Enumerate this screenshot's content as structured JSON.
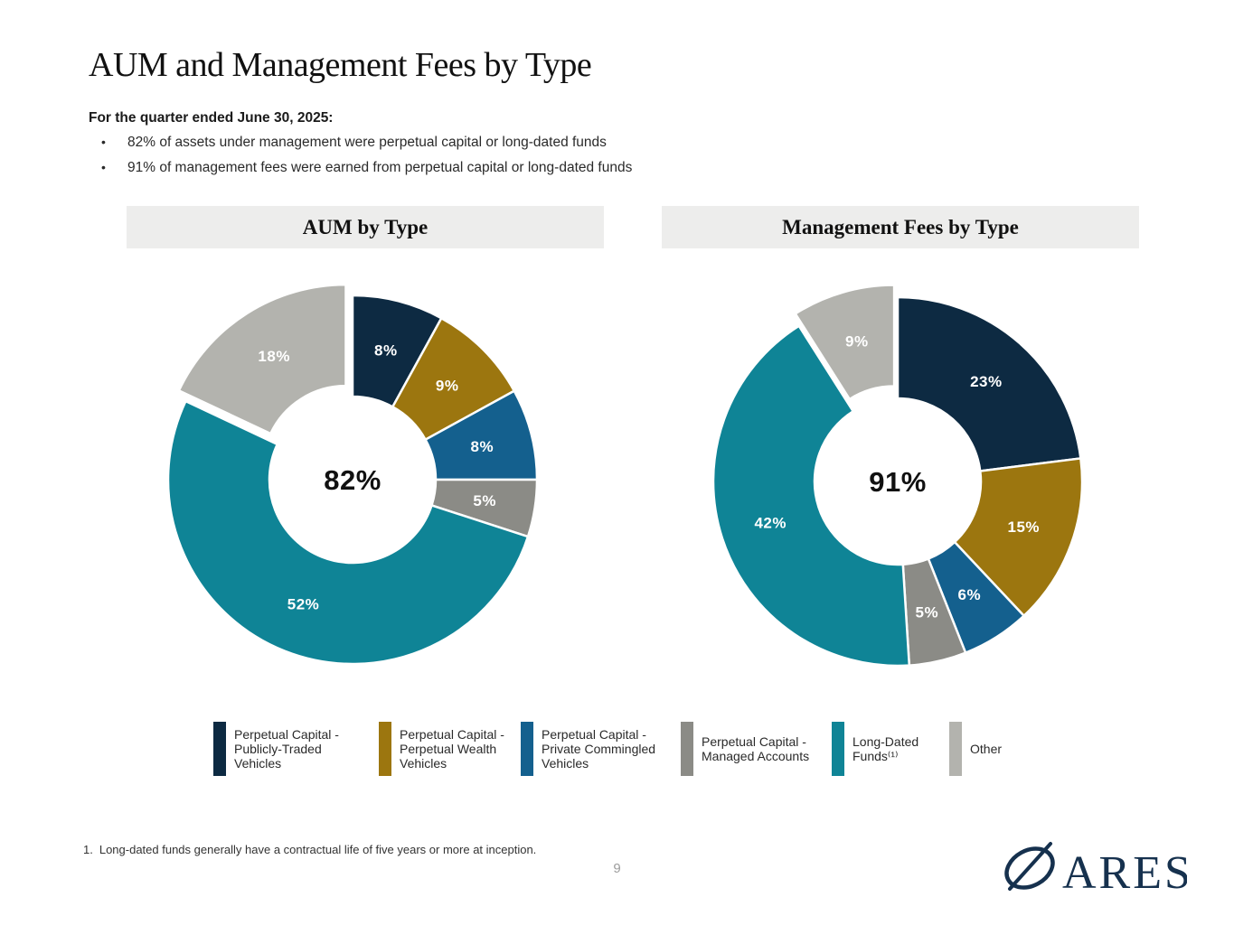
{
  "page": {
    "title": "AUM and Management Fees by Type",
    "intro_heading": "For the quarter ended June 30, 2025:",
    "bullet_glyph": "•",
    "bullets": [
      "82% of assets under management were perpetual capital or long-dated funds",
      "91% of management fees were earned from perpetual capital or long-dated funds"
    ],
    "footnote": {
      "marker": "1.",
      "text": "Long-dated funds generally have a contractual life of five years or more at inception."
    },
    "page_number": "9"
  },
  "brand": {
    "logo_text": "ARES",
    "logo_color": "#16314e"
  },
  "colors": {
    "navy": "#0d2a42",
    "gold": "#9c760f",
    "blue": "#14608e",
    "gray": "#8b8b86",
    "teal": "#0f8496",
    "light_gray": "#b3b3ae",
    "band_background": "#ededec"
  },
  "legend": {
    "items": [
      {
        "label": "Perpetual Capital - Publicly-Traded Vehicles",
        "color": "#0d2a42",
        "text_width": 148
      },
      {
        "label": "Perpetual Capital - Perpetual Wealth Vehicles",
        "color": "#9c760f",
        "text_width": 122
      },
      {
        "label": "Perpetual Capital - Private Commingled Vehicles",
        "color": "#14608e",
        "text_width": 142
      },
      {
        "label": "Perpetual Capital - Managed Accounts",
        "color": "#8b8b86",
        "text_width": 132
      },
      {
        "label": "Long-Dated Funds⁽¹⁾",
        "color": "#0f8496",
        "text_width": 95
      },
      {
        "label": "Other",
        "color": "#b3b3ae",
        "text_width": 50
      }
    ]
  },
  "chart_data": [
    {
      "type": "pie",
      "subtype": "donut",
      "title": "AUM by Type",
      "categories": [
        "Perpetual Capital - Publicly-Traded Vehicles",
        "Perpetual Capital - Perpetual Wealth Vehicles",
        "Perpetual Capital - Private Commingled Vehicles",
        "Perpetual Capital - Managed Accounts",
        "Long-Dated Funds",
        "Other"
      ],
      "values": [
        8,
        9,
        8,
        5,
        52,
        18
      ],
      "labels": [
        "8%",
        "9%",
        "8%",
        "5%",
        "52%",
        "18%"
      ],
      "colors": [
        "#0d2a42",
        "#9c760f",
        "#14608e",
        "#8b8b86",
        "#0f8496",
        "#b3b3ae"
      ],
      "center_label": "82%",
      "exploded_index": 5,
      "units": "%",
      "start_angle_deg": 0,
      "direction": "clockwise"
    },
    {
      "type": "pie",
      "subtype": "donut",
      "title": "Management Fees by Type",
      "categories": [
        "Perpetual Capital - Publicly-Traded Vehicles",
        "Perpetual Capital - Perpetual Wealth Vehicles",
        "Perpetual Capital - Private Commingled Vehicles",
        "Perpetual Capital - Managed Accounts",
        "Long-Dated Funds",
        "Other"
      ],
      "values": [
        23,
        15,
        6,
        5,
        42,
        9
      ],
      "labels": [
        "23%",
        "15%",
        "6%",
        "5%",
        "42%",
        "9%"
      ],
      "colors": [
        "#0d2a42",
        "#9c760f",
        "#14608e",
        "#8b8b86",
        "#0f8496",
        "#b3b3ae"
      ],
      "center_label": "91%",
      "exploded_index": 5,
      "units": "%",
      "start_angle_deg": 0,
      "direction": "clockwise"
    }
  ]
}
